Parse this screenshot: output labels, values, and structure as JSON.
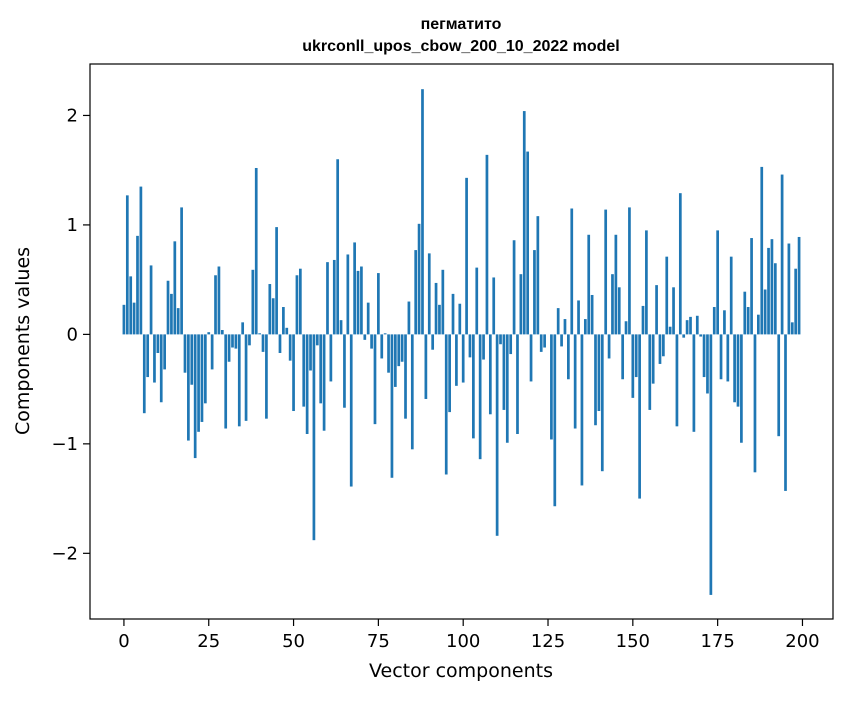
{
  "chart_data": {
    "type": "bar",
    "title_line1": "пегматито",
    "title_line2": "ukrconll_upos_cbow_200_10_2022 model",
    "xlabel": "Vector components",
    "ylabel": "Components values",
    "xlim": [
      -10,
      209
    ],
    "ylim": [
      -2.6,
      2.47
    ],
    "x_ticks": [
      0,
      25,
      50,
      75,
      100,
      125,
      150,
      175,
      200
    ],
    "x_tick_labels": [
      "0",
      "25",
      "50",
      "75",
      "100",
      "125",
      "150",
      "175",
      "200"
    ],
    "y_ticks": [
      -2,
      -1,
      0,
      1,
      2
    ],
    "y_tick_labels": [
      "−2",
      "−1",
      "0",
      "1",
      "2"
    ],
    "bar_color": "#1f77b4",
    "grid": false,
    "values": [
      0.27,
      1.27,
      0.53,
      0.29,
      0.9,
      1.35,
      -0.72,
      -0.39,
      0.63,
      -0.44,
      -0.17,
      -0.62,
      -0.32,
      0.49,
      0.37,
      0.85,
      0.24,
      1.16,
      -0.35,
      -0.97,
      -0.46,
      -1.13,
      -0.89,
      -0.8,
      -0.63,
      0.02,
      -0.32,
      0.54,
      0.62,
      0.04,
      -0.86,
      -0.25,
      -0.12,
      -0.13,
      -0.84,
      0.11,
      -0.79,
      -0.1,
      0.59,
      1.52,
      0.01,
      -0.16,
      -0.77,
      0.46,
      0.33,
      0.98,
      -0.17,
      0.25,
      0.06,
      -0.24,
      -0.7,
      0.54,
      0.6,
      -0.66,
      -0.91,
      -0.33,
      -1.88,
      -0.1,
      -0.63,
      -0.88,
      0.66,
      -0.43,
      0.68,
      1.6,
      0.13,
      -0.67,
      0.73,
      -1.39,
      0.84,
      0.58,
      0.62,
      -0.05,
      0.29,
      -0.13,
      -0.82,
      0.56,
      -0.22,
      0.01,
      -0.35,
      -1.31,
      -0.48,
      -0.29,
      -0.25,
      -0.77,
      0.3,
      -1.05,
      0.77,
      1.01,
      2.24,
      -0.59,
      0.74,
      -0.14,
      0.47,
      0.27,
      0.59,
      -1.28,
      -0.71,
      0.37,
      -0.47,
      0.28,
      -0.44,
      1.43,
      -0.21,
      -0.95,
      0.61,
      -1.14,
      -0.23,
      1.64,
      -0.73,
      0.52,
      -1.84,
      -0.09,
      -0.69,
      -0.99,
      -0.18,
      0.86,
      -0.91,
      0.55,
      2.04,
      1.67,
      -0.43,
      0.77,
      1.08,
      -0.16,
      -0.12,
      0.0,
      -0.96,
      -1.57,
      0.24,
      -0.11,
      0.14,
      -0.41,
      1.15,
      -0.86,
      0.31,
      -1.38,
      0.14,
      0.91,
      0.36,
      -0.83,
      -0.7,
      -1.25,
      1.14,
      -0.22,
      0.55,
      0.91,
      0.43,
      -0.41,
      0.12,
      1.16,
      -0.58,
      -0.39,
      -1.5,
      0.26,
      0.95,
      -0.69,
      -0.45,
      0.45,
      -0.27,
      -0.2,
      0.71,
      0.07,
      0.43,
      -0.84,
      1.29,
      -0.03,
      0.13,
      0.16,
      -0.89,
      0.17,
      -0.02,
      -0.39,
      -0.54,
      -2.38,
      0.25,
      0.95,
      -0.41,
      0.22,
      -0.43,
      0.71,
      -0.62,
      -0.66,
      -0.99,
      0.39,
      0.25,
      0.88,
      -1.26,
      0.18,
      1.53,
      0.41,
      0.79,
      0.87,
      0.65,
      -0.93,
      1.46,
      -1.43,
      0.83,
      0.11,
      0.6,
      0.89
    ]
  }
}
